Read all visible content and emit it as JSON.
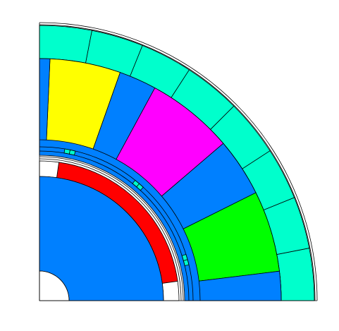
{
  "diagram": {
    "type": "motor-cross-section-quarter",
    "colors": {
      "background": "#ffffff",
      "outline": "#000000",
      "stator_back_iron": "#00ffcc",
      "core_iron": "#0080ff",
      "rotor_magnet": "#ff0000",
      "winding_phase_a": "#ffff00",
      "winding_phase_b": "#ff00ff",
      "winding_phase_c": "#00ff00",
      "slot_wedge": "#00ffcc",
      "air_pocket": "#ffffff"
    },
    "regions": [
      {
        "name": "stator-back-iron",
        "color_key": "stator_back_iron"
      },
      {
        "name": "stator-core",
        "color_key": "core_iron"
      },
      {
        "name": "rotor-core",
        "color_key": "core_iron"
      },
      {
        "name": "rotor-magnet",
        "color_key": "rotor_magnet"
      },
      {
        "name": "winding-phase-a",
        "color_key": "winding_phase_a"
      },
      {
        "name": "winding-phase-b",
        "color_key": "winding_phase_b"
      },
      {
        "name": "winding-phase-c",
        "color_key": "winding_phase_c"
      }
    ]
  }
}
